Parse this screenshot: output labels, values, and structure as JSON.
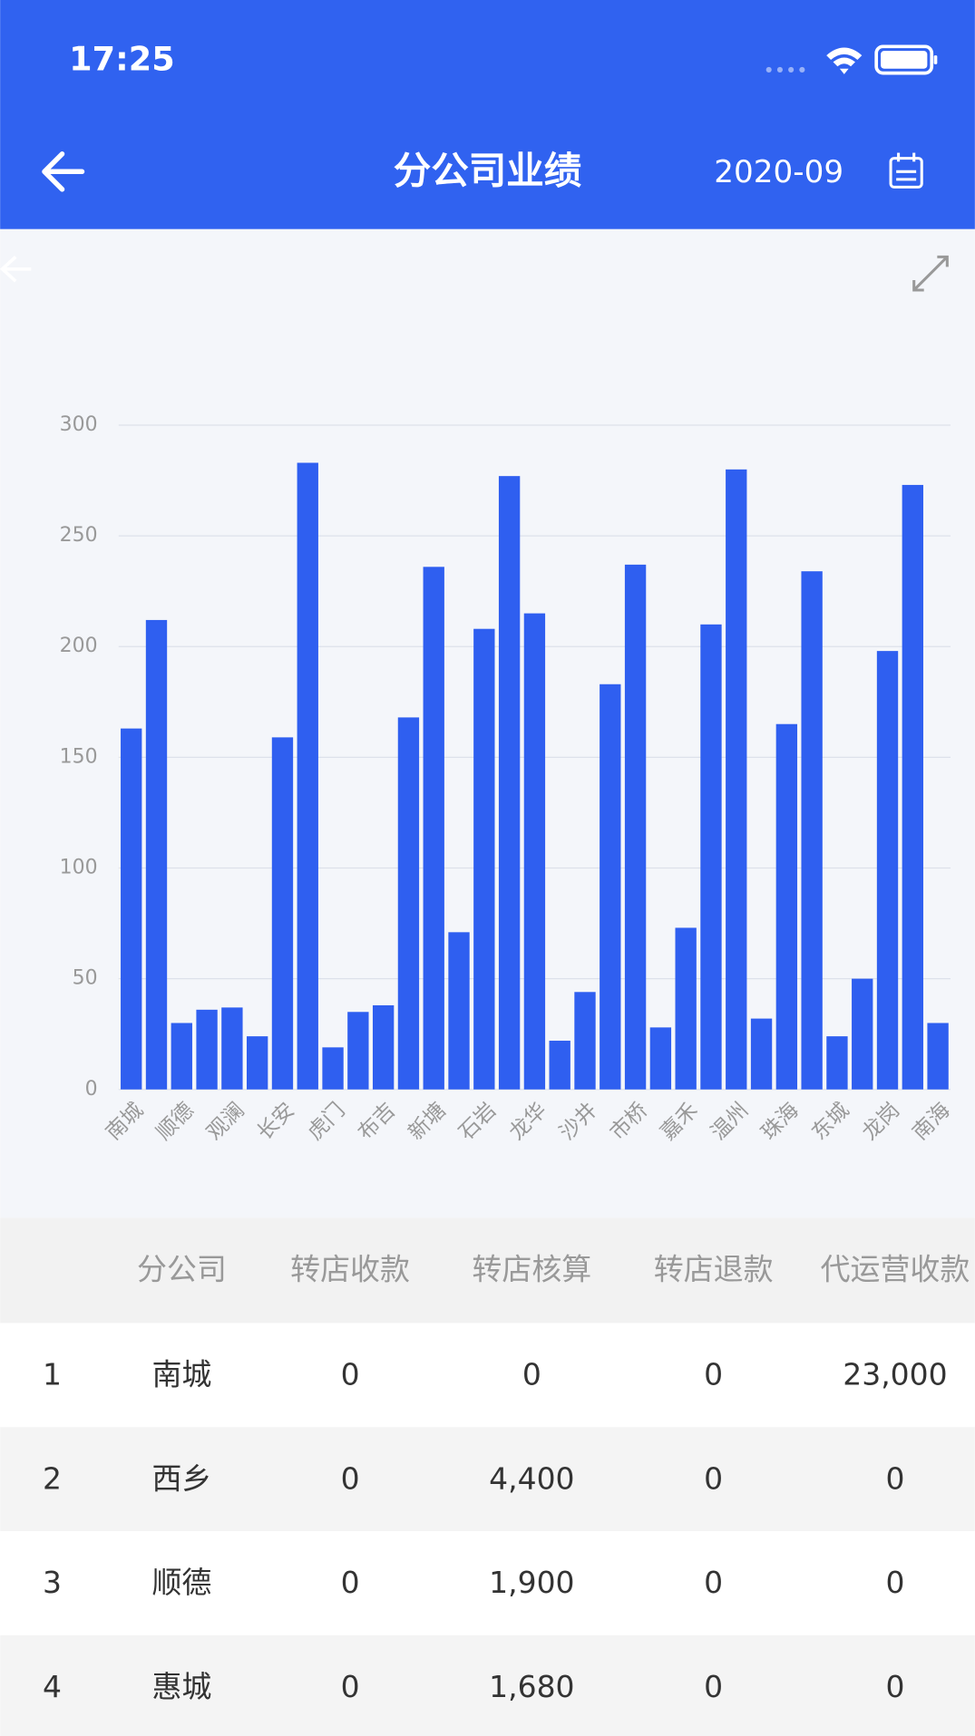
{
  "status_bar": {
    "time": "17:25"
  },
  "header": {
    "title": "分公司业绩",
    "date": "2020-09"
  },
  "chart_data": {
    "type": "bar",
    "color": "#2f5ff0",
    "categories": [
      "南城",
      null,
      "顺德",
      null,
      "观澜",
      null,
      "长安",
      null,
      "虎门",
      null,
      "布吉",
      null,
      "新塘",
      null,
      "石岩",
      null,
      "龙华",
      null,
      "沙井",
      null,
      "市桥",
      null,
      "嘉禾",
      null,
      "温州",
      null,
      "珠海",
      null,
      "东城",
      null,
      "龙岗",
      null,
      "南海"
    ],
    "values": [
      163,
      212,
      30,
      36,
      37,
      24,
      159,
      283,
      19,
      35,
      38,
      168,
      236,
      71,
      208,
      277,
      215,
      22,
      44,
      183,
      237,
      28,
      73,
      210,
      280,
      32,
      165,
      234,
      24,
      50,
      198,
      273,
      30
    ],
    "ylim": [
      0,
      300
    ],
    "yticks": [
      0,
      50,
      100,
      150,
      200,
      250,
      300
    ],
    "grid": true
  },
  "table": {
    "columns": [
      "分公司",
      "转店收款",
      "转店核算",
      "转店退款",
      "代运营收款"
    ],
    "rows": [
      [
        "1",
        "南城",
        "0",
        "0",
        "0",
        "23,000"
      ],
      [
        "2",
        "西乡",
        "0",
        "4,400",
        "0",
        "0"
      ],
      [
        "3",
        "顺德",
        "0",
        "1,900",
        "0",
        "0"
      ],
      [
        "4",
        "惠城",
        "0",
        "1,680",
        "0",
        "0"
      ]
    ]
  }
}
